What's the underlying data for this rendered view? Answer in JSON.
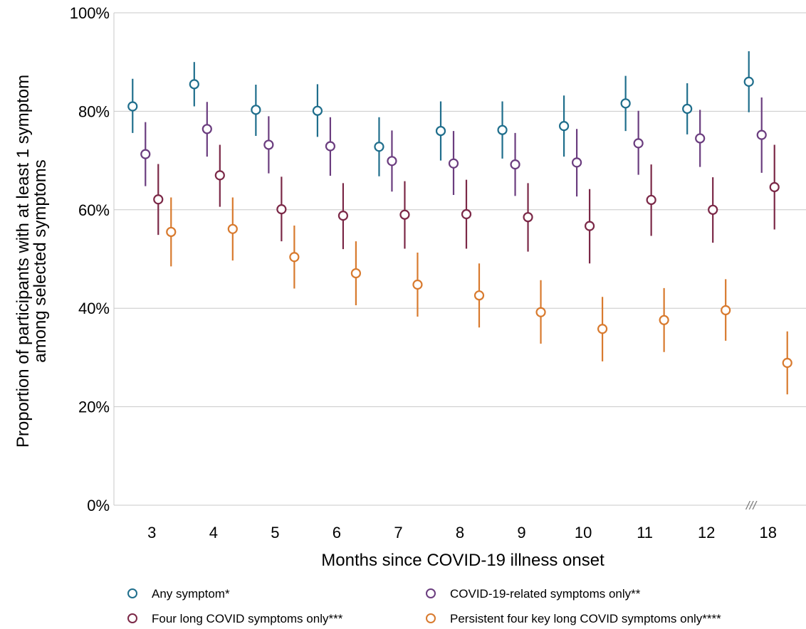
{
  "chart_data": {
    "type": "scatter",
    "xlabel": "Months since COVID-19 illness onset",
    "ylabel_line1": "Proportion of participants with at least 1 symptom",
    "ylabel_line2": "among selected symptoms",
    "categories": [
      "3",
      "4",
      "5",
      "6",
      "7",
      "8",
      "9",
      "10",
      "11",
      "12",
      "18"
    ],
    "y_ticks": [
      "0%",
      "20%",
      "40%",
      "60%",
      "80%",
      "100%"
    ],
    "ylim": [
      0,
      100
    ],
    "grid": "horizontal",
    "legend_position": "bottom",
    "axis_break_mark": "///",
    "series": [
      {
        "name": "Any symptom*",
        "color": "#1f6e8c",
        "values": [
          81,
          85.5,
          80.3,
          80.1,
          72.8,
          76,
          76.2,
          77,
          81.6,
          80.5,
          86
        ],
        "lower": [
          75.6,
          81,
          75,
          74.8,
          66.8,
          70,
          70.4,
          70.8,
          76,
          75.3,
          79.8
        ],
        "upper": [
          86.6,
          90,
          85.4,
          85.5,
          78.8,
          82,
          82,
          83.2,
          87.2,
          85.7,
          92.2
        ]
      },
      {
        "name": "COVID-19-related symptoms only**",
        "color": "#6b3d7f",
        "values": [
          71.3,
          76.4,
          73.2,
          72.9,
          69.9,
          69.4,
          69.2,
          69.6,
          73.5,
          74.5,
          75.2
        ],
        "lower": [
          64.8,
          70.8,
          67.4,
          66.9,
          63.7,
          63,
          62.8,
          62.7,
          67.1,
          68.7,
          67.5
        ],
        "upper": [
          77.8,
          81.9,
          79,
          78.8,
          76.1,
          76,
          75.6,
          76.4,
          80.1,
          80.3,
          82.8
        ]
      },
      {
        "name": "Four long COVID symptoms only***",
        "color": "#7b2847",
        "values": [
          62.1,
          67,
          60.1,
          58.8,
          59,
          59.1,
          58.5,
          56.7,
          62,
          60,
          64.6
        ],
        "lower": [
          54.9,
          60.6,
          53.6,
          52,
          52.1,
          52.1,
          51.5,
          49.1,
          54.7,
          53.3,
          56
        ],
        "upper": [
          69.3,
          73.2,
          66.7,
          65.4,
          65.8,
          66.1,
          65.4,
          64.2,
          69.2,
          66.6,
          73.2
        ]
      },
      {
        "name": "Persistent four key long COVID symptoms only****",
        "color": "#d87a2e",
        "values": [
          55.5,
          56.1,
          50.4,
          47.1,
          44.8,
          42.6,
          39.2,
          35.8,
          37.6,
          39.6,
          28.9
        ],
        "lower": [
          48.5,
          49.7,
          44,
          40.6,
          38.3,
          36.1,
          32.8,
          29.2,
          31.1,
          33.4,
          22.5
        ],
        "upper": [
          62.5,
          62.5,
          56.8,
          53.6,
          51.3,
          49.1,
          45.7,
          42.3,
          44.1,
          45.9,
          35.3
        ]
      }
    ]
  }
}
